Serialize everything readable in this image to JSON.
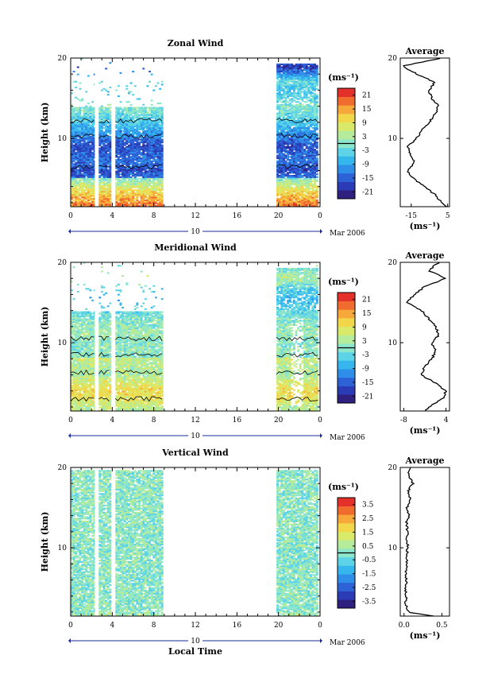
{
  "figure": {
    "xlabel": "Local Time",
    "date_label": "Mar 2006",
    "day_label": "10",
    "avg_title": "Average",
    "ylabel": "Height (km)",
    "unit_label": "(ms⁻¹)"
  },
  "chart_data": [
    {
      "type": "heatmap",
      "title": "Zonal Wind",
      "ylabel": "Height (km)",
      "xlabel": "Local Time",
      "x_ticks": [
        "0",
        "4",
        "8",
        "12",
        "16",
        "20",
        "0"
      ],
      "y_ticks": [
        "10",
        "20"
      ],
      "xlim": [
        0,
        24
      ],
      "ylim": [
        1.5,
        20
      ],
      "colorbar": {
        "label": "(ms⁻¹)",
        "ticks": [
          "21",
          "15",
          "9",
          "3",
          "-3",
          "-9",
          "-15",
          "-21"
        ],
        "range": [
          -24,
          24
        ]
      },
      "data_coverage_hours": [
        [
          0,
          2.3
        ],
        [
          2.7,
          3.9
        ],
        [
          4.3,
          8.9
        ],
        [
          19.8,
          23.8
        ]
      ],
      "profile": {
        "title": "Average",
        "xlabel": "(ms⁻¹)",
        "x_ticks": [
          "-15",
          "5"
        ],
        "xlim": [
          -21,
          6
        ],
        "heights": [
          1.5,
          2,
          3,
          4,
          5,
          6,
          7,
          8,
          9,
          10,
          11,
          12,
          13,
          14,
          15,
          16,
          17,
          18,
          19,
          20
        ],
        "values": [
          4,
          2,
          -2,
          -8,
          -14,
          -17,
          -13,
          -15,
          -17,
          -12,
          -9,
          -5,
          -2,
          0,
          -4,
          -5,
          -2,
          -12,
          -20,
          2
        ]
      }
    },
    {
      "type": "heatmap",
      "title": "Meridional Wind",
      "ylabel": "Height (km)",
      "xlabel": "Local Time",
      "x_ticks": [
        "0",
        "4",
        "8",
        "12",
        "16",
        "20",
        "0"
      ],
      "y_ticks": [
        "10",
        "20"
      ],
      "xlim": [
        0,
        24
      ],
      "ylim": [
        1.5,
        20
      ],
      "colorbar": {
        "label": "(ms⁻¹)",
        "ticks": [
          "21",
          "15",
          "9",
          "3",
          "-3",
          "-9",
          "-15",
          "-21"
        ],
        "range": [
          -24,
          24
        ]
      },
      "data_coverage_hours": [
        [
          0,
          2.3
        ],
        [
          2.7,
          3.9
        ],
        [
          4.3,
          8.9
        ],
        [
          19.8,
          23.8
        ]
      ],
      "profile": {
        "title": "Average",
        "xlabel": "(ms⁻¹)",
        "x_ticks": [
          "-8",
          "4"
        ],
        "xlim": [
          -9,
          5
        ],
        "heights": [
          1.5,
          2,
          3,
          4,
          5,
          6,
          7,
          8,
          9,
          10,
          11,
          12,
          13,
          14,
          15,
          16,
          17,
          18,
          19,
          20
        ],
        "values": [
          -2,
          -1,
          3,
          4,
          1,
          -3,
          -2,
          0,
          1,
          0,
          2,
          1,
          -1,
          -3,
          -7,
          -5,
          -2,
          4,
          -1,
          2
        ]
      }
    },
    {
      "type": "heatmap",
      "title": "Vertical Wind",
      "ylabel": "Height (km)",
      "xlabel": "Local Time",
      "x_ticks": [
        "0",
        "4",
        "8",
        "12",
        "16",
        "20",
        "0"
      ],
      "y_ticks": [
        "10",
        "20"
      ],
      "xlim": [
        0,
        24
      ],
      "ylim": [
        1.5,
        20
      ],
      "colorbar": {
        "label": "(ms⁻¹)",
        "ticks": [
          "3.5",
          "2.5",
          "1.5",
          "0.5",
          "-0.5",
          "-1.5",
          "-2.5",
          "-3.5"
        ],
        "range": [
          -4,
          4
        ]
      },
      "data_coverage_hours": [
        [
          0,
          2.3
        ],
        [
          2.7,
          3.9
        ],
        [
          4.3,
          8.9
        ],
        [
          19.8,
          23.8
        ]
      ],
      "profile": {
        "title": "Average",
        "xlabel": "(ms⁻¹)",
        "x_ticks": [
          "0.0",
          "0.5"
        ],
        "xlim": [
          -0.05,
          0.6
        ],
        "heights": [
          1.5,
          2,
          3,
          4,
          5,
          6,
          7,
          8,
          9,
          10,
          11,
          12,
          13,
          14,
          15,
          16,
          17,
          18,
          19,
          20
        ],
        "values": [
          0.4,
          0.05,
          0.02,
          0.03,
          0.02,
          0.03,
          0.02,
          0.04,
          0.03,
          0.05,
          0.04,
          0.05,
          0.03,
          0.06,
          0.04,
          0.08,
          0.05,
          0.12,
          0.06,
          0.08
        ]
      }
    }
  ]
}
